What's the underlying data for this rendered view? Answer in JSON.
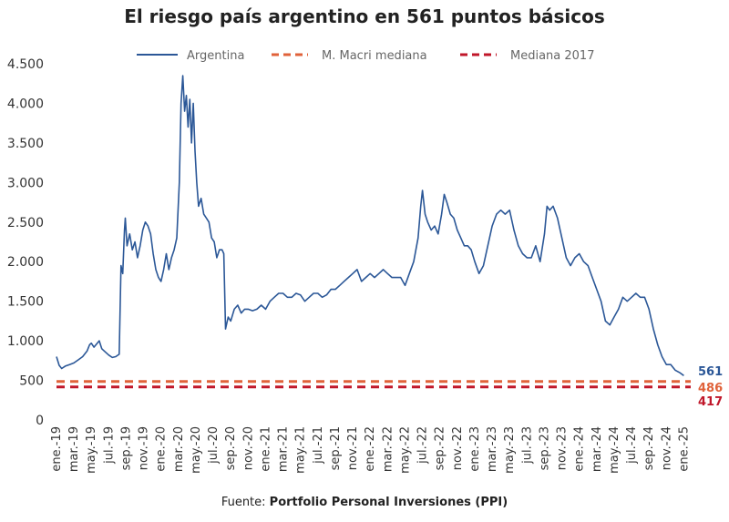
{
  "chart_data": {
    "type": "line",
    "title": "El riesgo país argentino en 561 puntos básicos",
    "source_prefix": "Fuente: ",
    "source_name": "Portfolio Personal Inversiones (PPI)",
    "ylim": [
      0,
      4500
    ],
    "y_ticks": [
      {
        "value": 0,
        "label": "0"
      },
      {
        "value": 500,
        "label": "500"
      },
      {
        "value": 1000,
        "label": "1.000"
      },
      {
        "value": 1500,
        "label": "1.500"
      },
      {
        "value": 2000,
        "label": "2.000"
      },
      {
        "value": 2500,
        "label": "2.500"
      },
      {
        "value": 3000,
        "label": "3.000"
      },
      {
        "value": 3500,
        "label": "3.500"
      },
      {
        "value": 4000,
        "label": "4.000"
      },
      {
        "value": 4500,
        "label": "4.500"
      }
    ],
    "x_range_months": [
      0,
      73
    ],
    "x_ticks": [
      {
        "m": 0,
        "label": "ene.-19"
      },
      {
        "m": 2,
        "label": "mar.-19"
      },
      {
        "m": 4,
        "label": "may.-19"
      },
      {
        "m": 6,
        "label": "jul.-19"
      },
      {
        "m": 8,
        "label": "sep.-19"
      },
      {
        "m": 10,
        "label": "nov.-19"
      },
      {
        "m": 12,
        "label": "ene.-20"
      },
      {
        "m": 14,
        "label": "mar.-20"
      },
      {
        "m": 16,
        "label": "may.-20"
      },
      {
        "m": 18,
        "label": "jul.-20"
      },
      {
        "m": 20,
        "label": "sep.-20"
      },
      {
        "m": 22,
        "label": "nov.-20"
      },
      {
        "m": 24,
        "label": "ene.-21"
      },
      {
        "m": 26,
        "label": "mar.-21"
      },
      {
        "m": 28,
        "label": "may.-21"
      },
      {
        "m": 30,
        "label": "jul.-21"
      },
      {
        "m": 32,
        "label": "sep.-21"
      },
      {
        "m": 34,
        "label": "nov.-21"
      },
      {
        "m": 36,
        "label": "ene.-22"
      },
      {
        "m": 38,
        "label": "mar.-22"
      },
      {
        "m": 40,
        "label": "may.-22"
      },
      {
        "m": 42,
        "label": "jul.-22"
      },
      {
        "m": 44,
        "label": "sep.-22"
      },
      {
        "m": 46,
        "label": "nov.-22"
      },
      {
        "m": 48,
        "label": "ene.-23"
      },
      {
        "m": 50,
        "label": "mar.-23"
      },
      {
        "m": 52,
        "label": "may.-23"
      },
      {
        "m": 54,
        "label": "jul.-23"
      },
      {
        "m": 56,
        "label": "sep.-23"
      },
      {
        "m": 58,
        "label": "nov.-23"
      },
      {
        "m": 60,
        "label": "ene.-24"
      },
      {
        "m": 62,
        "label": "mar.-24"
      },
      {
        "m": 64,
        "label": "may.-24"
      },
      {
        "m": 66,
        "label": "jul.-24"
      },
      {
        "m": 68,
        "label": "sep.-24"
      },
      {
        "m": 70,
        "label": "nov.-24"
      },
      {
        "m": 72,
        "label": "ene.-25"
      }
    ],
    "series": [
      {
        "name": "Argentina",
        "color": "#2b5797",
        "style": "solid",
        "end_label": "561",
        "points": [
          [
            0,
            800
          ],
          [
            0.3,
            690
          ],
          [
            0.6,
            650
          ],
          [
            1,
            680
          ],
          [
            1.5,
            700
          ],
          [
            2,
            720
          ],
          [
            2.5,
            760
          ],
          [
            3,
            800
          ],
          [
            3.5,
            870
          ],
          [
            3.8,
            950
          ],
          [
            4,
            970
          ],
          [
            4.3,
            920
          ],
          [
            4.6,
            960
          ],
          [
            4.9,
            1000
          ],
          [
            5.2,
            900
          ],
          [
            5.6,
            860
          ],
          [
            6,
            820
          ],
          [
            6.4,
            790
          ],
          [
            6.8,
            800
          ],
          [
            7.2,
            830
          ],
          [
            7.4,
            1950
          ],
          [
            7.6,
            1850
          ],
          [
            7.8,
            2400
          ],
          [
            7.9,
            2550
          ],
          [
            8.1,
            2200
          ],
          [
            8.4,
            2350
          ],
          [
            8.7,
            2150
          ],
          [
            9,
            2250
          ],
          [
            9.3,
            2050
          ],
          [
            9.6,
            2200
          ],
          [
            9.9,
            2400
          ],
          [
            10.2,
            2500
          ],
          [
            10.5,
            2450
          ],
          [
            10.8,
            2350
          ],
          [
            11.1,
            2100
          ],
          [
            11.4,
            1900
          ],
          [
            11.7,
            1800
          ],
          [
            12,
            1750
          ],
          [
            12.3,
            1900
          ],
          [
            12.6,
            2100
          ],
          [
            12.9,
            1900
          ],
          [
            13.2,
            2050
          ],
          [
            13.5,
            2150
          ],
          [
            13.8,
            2300
          ],
          [
            14.1,
            3000
          ],
          [
            14.3,
            4000
          ],
          [
            14.5,
            4350
          ],
          [
            14.7,
            3900
          ],
          [
            14.9,
            4100
          ],
          [
            15.1,
            3700
          ],
          [
            15.3,
            4050
          ],
          [
            15.5,
            3500
          ],
          [
            15.7,
            4000
          ],
          [
            15.9,
            3400
          ],
          [
            16.1,
            3000
          ],
          [
            16.3,
            2700
          ],
          [
            16.6,
            2800
          ],
          [
            16.9,
            2600
          ],
          [
            17.2,
            2550
          ],
          [
            17.5,
            2500
          ],
          [
            17.8,
            2300
          ],
          [
            18.1,
            2250
          ],
          [
            18.4,
            2050
          ],
          [
            18.7,
            2150
          ],
          [
            19,
            2150
          ],
          [
            19.2,
            2100
          ],
          [
            19.4,
            1150
          ],
          [
            19.7,
            1300
          ],
          [
            20,
            1250
          ],
          [
            20.4,
            1400
          ],
          [
            20.8,
            1450
          ],
          [
            21.2,
            1350
          ],
          [
            21.6,
            1400
          ],
          [
            22,
            1400
          ],
          [
            22.5,
            1380
          ],
          [
            23,
            1400
          ],
          [
            23.5,
            1450
          ],
          [
            24,
            1400
          ],
          [
            24.5,
            1500
          ],
          [
            25,
            1550
          ],
          [
            25.5,
            1600
          ],
          [
            26,
            1600
          ],
          [
            26.5,
            1550
          ],
          [
            27,
            1550
          ],
          [
            27.5,
            1600
          ],
          [
            28,
            1580
          ],
          [
            28.5,
            1500
          ],
          [
            29,
            1550
          ],
          [
            29.5,
            1600
          ],
          [
            30,
            1600
          ],
          [
            30.5,
            1550
          ],
          [
            31,
            1580
          ],
          [
            31.5,
            1650
          ],
          [
            32,
            1650
          ],
          [
            32.5,
            1700
          ],
          [
            33,
            1750
          ],
          [
            33.5,
            1800
          ],
          [
            34,
            1850
          ],
          [
            34.5,
            1900
          ],
          [
            35,
            1750
          ],
          [
            35.5,
            1800
          ],
          [
            36,
            1850
          ],
          [
            36.5,
            1800
          ],
          [
            37,
            1850
          ],
          [
            37.5,
            1900
          ],
          [
            38,
            1850
          ],
          [
            38.5,
            1800
          ],
          [
            39,
            1800
          ],
          [
            39.5,
            1800
          ],
          [
            40,
            1700
          ],
          [
            40.5,
            1850
          ],
          [
            41,
            2000
          ],
          [
            41.5,
            2300
          ],
          [
            41.8,
            2700
          ],
          [
            42,
            2900
          ],
          [
            42.3,
            2600
          ],
          [
            42.6,
            2500
          ],
          [
            43,
            2400
          ],
          [
            43.4,
            2450
          ],
          [
            43.8,
            2350
          ],
          [
            44.2,
            2600
          ],
          [
            44.5,
            2850
          ],
          [
            44.8,
            2750
          ],
          [
            45.2,
            2600
          ],
          [
            45.6,
            2550
          ],
          [
            46,
            2400
          ],
          [
            46.4,
            2300
          ],
          [
            46.8,
            2200
          ],
          [
            47.2,
            2200
          ],
          [
            47.6,
            2150
          ],
          [
            48,
            2000
          ],
          [
            48.5,
            1850
          ],
          [
            49,
            1950
          ],
          [
            49.5,
            2200
          ],
          [
            50,
            2450
          ],
          [
            50.5,
            2600
          ],
          [
            51,
            2650
          ],
          [
            51.5,
            2600
          ],
          [
            52,
            2650
          ],
          [
            52.5,
            2400
          ],
          [
            53,
            2200
          ],
          [
            53.5,
            2100
          ],
          [
            54,
            2050
          ],
          [
            54.5,
            2050
          ],
          [
            55,
            2200
          ],
          [
            55.5,
            2000
          ],
          [
            56,
            2350
          ],
          [
            56.3,
            2700
          ],
          [
            56.6,
            2650
          ],
          [
            57,
            2700
          ],
          [
            57.5,
            2550
          ],
          [
            58,
            2300
          ],
          [
            58.5,
            2050
          ],
          [
            59,
            1950
          ],
          [
            59.5,
            2050
          ],
          [
            60,
            2100
          ],
          [
            60.5,
            2000
          ],
          [
            61,
            1950
          ],
          [
            61.5,
            1800
          ],
          [
            62,
            1650
          ],
          [
            62.5,
            1500
          ],
          [
            63,
            1250
          ],
          [
            63.5,
            1200
          ],
          [
            64,
            1300
          ],
          [
            64.5,
            1400
          ],
          [
            65,
            1550
          ],
          [
            65.5,
            1500
          ],
          [
            66,
            1550
          ],
          [
            66.5,
            1600
          ],
          [
            67,
            1550
          ],
          [
            67.5,
            1550
          ],
          [
            68,
            1400
          ],
          [
            68.5,
            1150
          ],
          [
            69,
            950
          ],
          [
            69.5,
            800
          ],
          [
            70,
            700
          ],
          [
            70.5,
            700
          ],
          [
            71,
            630
          ],
          [
            71.5,
            600
          ],
          [
            72,
            561
          ]
        ]
      },
      {
        "name": "M. Macri mediana",
        "color": "#e0623a",
        "style": "dashed",
        "value": 486,
        "end_label": "486"
      },
      {
        "name": "Mediana 2017",
        "color": "#c0172a",
        "style": "dashed",
        "value": 417,
        "end_label": "417"
      }
    ],
    "legend_position": "top"
  }
}
